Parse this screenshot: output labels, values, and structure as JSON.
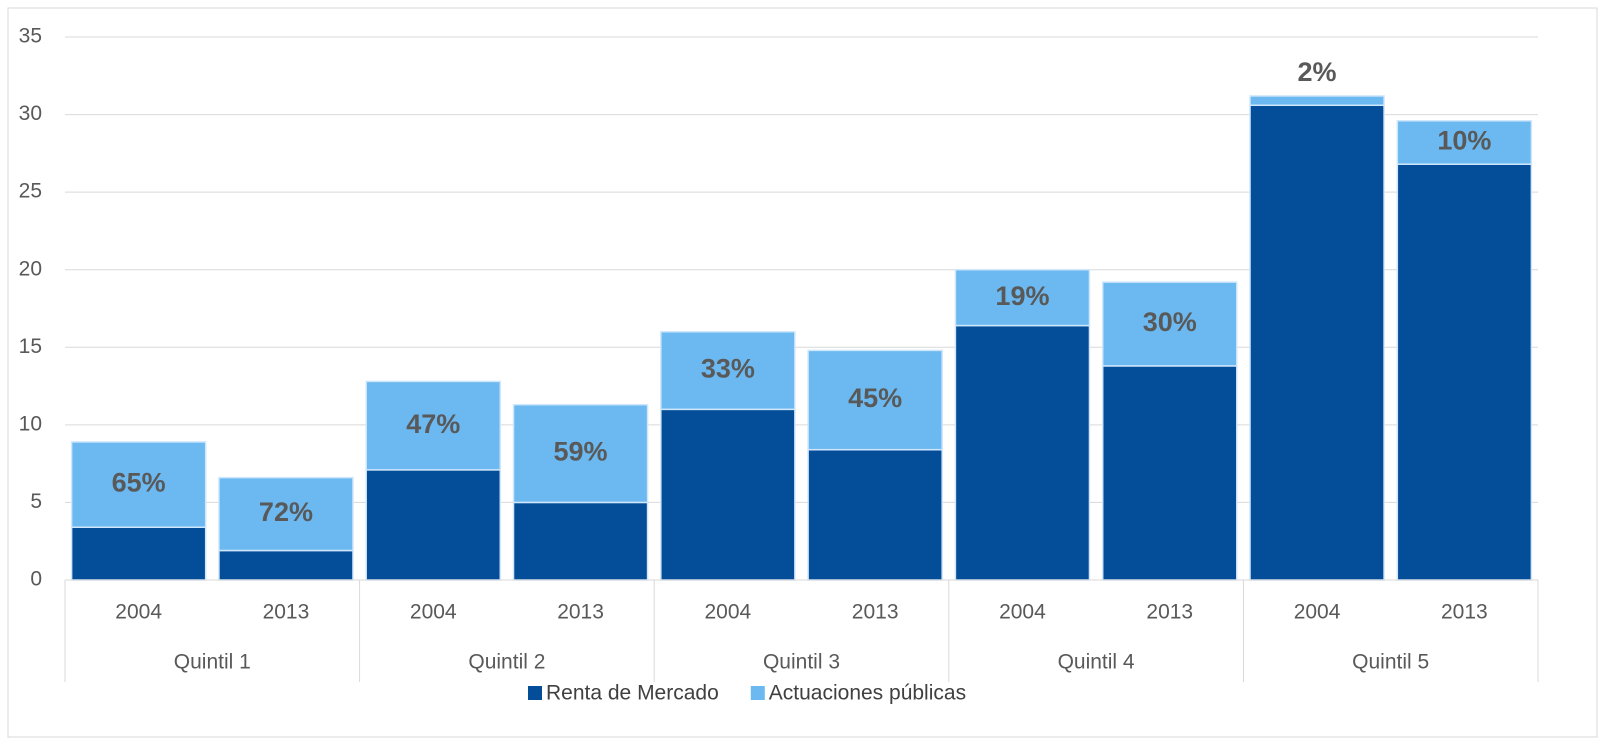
{
  "chart_data": {
    "type": "stacked_bar",
    "groups": [
      "Quintil 1",
      "Quintil 2",
      "Quintil 3",
      "Quintil 4",
      "Quintil 5"
    ],
    "categories": [
      "2004",
      "2013",
      "2004",
      "2013",
      "2004",
      "2013",
      "2004",
      "2013",
      "2004",
      "2013"
    ],
    "series": [
      {
        "name": "Renta de Mercado",
        "color": "#034d99",
        "values": [
          3.4,
          1.9,
          7.1,
          5.0,
          11.0,
          8.4,
          16.4,
          13.8,
          30.6,
          26.8
        ]
      },
      {
        "name": "Actuaciones públicas",
        "color": "#6bb9f0",
        "values": [
          5.5,
          4.7,
          5.7,
          6.3,
          5.0,
          6.4,
          3.6,
          5.4,
          0.6,
          2.8
        ]
      }
    ],
    "annotations": [
      "65%",
      "72%",
      "47%",
      "59%",
      "33%",
      "45%",
      "19%",
      "30%",
      "2%",
      "10%"
    ],
    "ylim": [
      0,
      35
    ],
    "yticks": [
      0,
      5,
      10,
      15,
      20,
      25,
      30,
      35
    ],
    "grid": true,
    "legend": "bottom"
  }
}
